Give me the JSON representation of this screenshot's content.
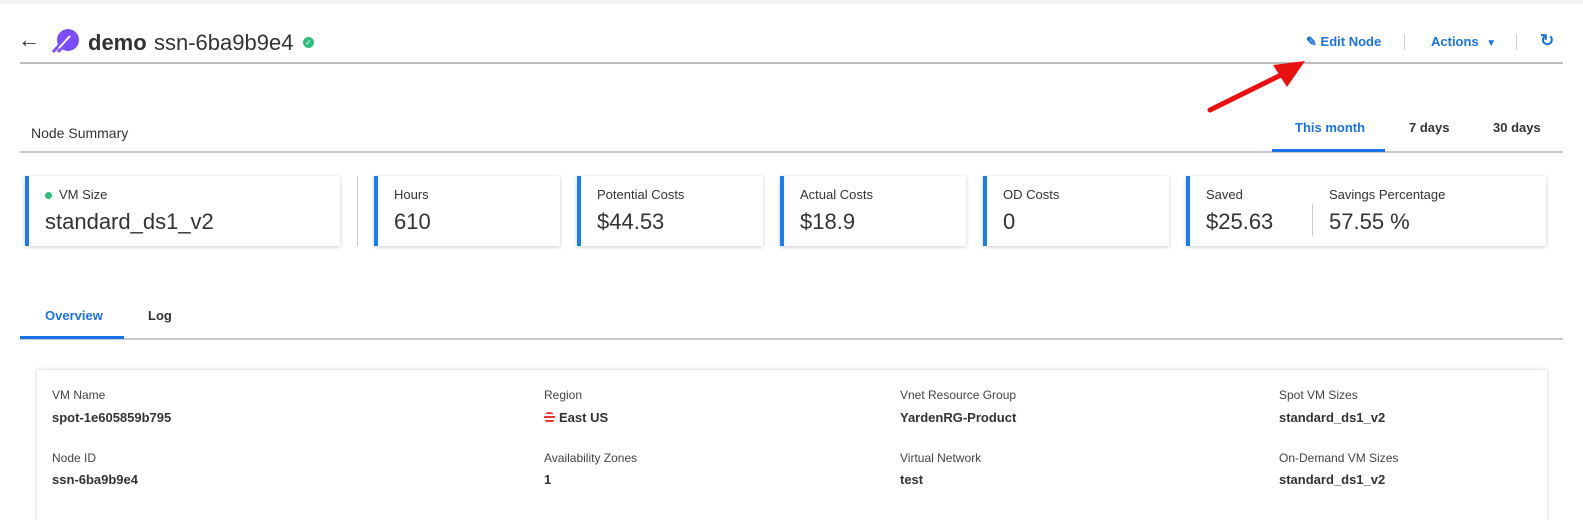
{
  "header": {
    "title": "demo",
    "node_id": "ssn-6ba9b9e4",
    "status": "healthy",
    "edit_label": "Edit Node",
    "actions_label": "Actions"
  },
  "summary": {
    "title": "Node Summary",
    "ranges": [
      "This month",
      "7 days",
      "30 days"
    ],
    "active_range": "This month"
  },
  "cards": [
    {
      "label": "VM Size",
      "value": "standard_ds1_v2"
    },
    {
      "label": "Hours",
      "value": "610"
    },
    {
      "label": "Potential Costs",
      "value": "$44.53"
    },
    {
      "label": "Actual Costs",
      "value": "$18.9"
    },
    {
      "label": "OD Costs",
      "value": "0"
    },
    {
      "label": "Saved",
      "value": "$25.63"
    },
    {
      "label": "Savings Percentage",
      "value": "57.55 %"
    }
  ],
  "tabs": [
    "Overview",
    "Log"
  ],
  "details": [
    {
      "label": "VM Name",
      "value": "spot-1e605859b795"
    },
    {
      "label": "Region",
      "value": "East US"
    },
    {
      "label": "Vnet Resource Group",
      "value": "YardenRG-Product"
    },
    {
      "label": "Spot VM Sizes",
      "value": "standard_ds1_v2"
    },
    {
      "label": "Node ID",
      "value": "ssn-6ba9b9e4"
    },
    {
      "label": "Availability Zones",
      "value": "1"
    },
    {
      "label": "Virtual Network",
      "value": "test"
    },
    {
      "label": "On-Demand VM Sizes",
      "value": "standard_ds1_v2"
    }
  ],
  "colors": {
    "accent": "#1a73e8",
    "card_border": "#1a7cf5",
    "status": "#2bbf7e",
    "logo": "#7b4dff",
    "annotation": "#e81010"
  }
}
